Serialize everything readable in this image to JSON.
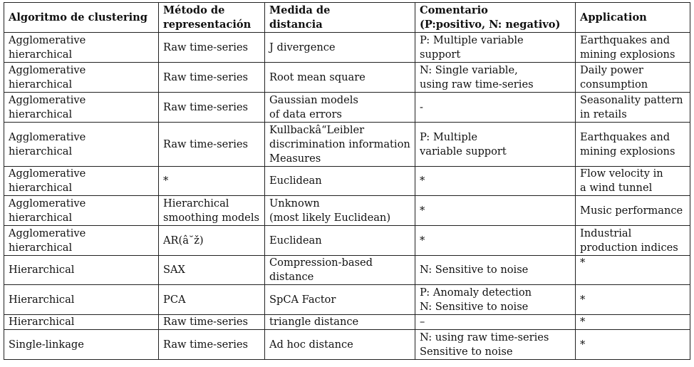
{
  "table": {
    "headers": [
      "Algoritmo de clustering",
      "Método de\nrepresentación",
      "Medida de\ndistancia",
      "Comentario\n(P:positivo, N: negativo)",
      "Application"
    ],
    "rows": [
      [
        "Agglomerative\nhierarchical",
        "Raw time-series",
        "J divergence",
        "P: Multiple variable\nsupport",
        "Earthquakes and\nmining explosions"
      ],
      [
        "Agglomerative\nhierarchical",
        "Raw time-series",
        "Root mean square",
        "N: Single variable,\nusing raw time-series",
        "Daily power\nconsumption"
      ],
      [
        "Agglomerative\nhierarchical",
        "Raw time-series",
        "Gaussian models\nof data errors",
        "-",
        "Seasonality pattern\nin retails"
      ],
      [
        "Agglomerative\nhierarchical",
        "Raw time-series",
        "Kullbackâ“Leibler\ndiscrimination information\nMeasures",
        "P: Multiple\nvariable support",
        "Earthquakes and\nmining explosions"
      ],
      [
        "Agglomerative\nhierarchical",
        "*",
        "Euclidean",
        "*",
        "Flow velocity in\na wind tunnel"
      ],
      [
        "Agglomerative\nhierarchical",
        "Hierarchical\nsmoothing models",
        "Unknown\n(most likely Euclidean)",
        "*",
        "Music performance"
      ],
      [
        "Agglomerative\nhierarchical",
        "AR(â˘ž)",
        "Euclidean",
        "*",
        "Industrial\nproduction indices"
      ],
      [
        "Hierarchical",
        "SAX",
        "Compression-based\ndistance",
        "N: Sensitive to noise",
        "*"
      ],
      [
        "Hierarchical",
        "PCA",
        "SpCA Factor",
        "P: Anomaly detection\nN: Sensitive to noise",
        "*"
      ],
      [
        "Hierarchical",
        "Raw time-series",
        "triangle distance",
        "–",
        "*"
      ],
      [
        "Single-linkage",
        "Raw time-series",
        "Ad hoc distance",
        "N: using raw time-series\nSensitive to noise",
        "*"
      ]
    ]
  }
}
